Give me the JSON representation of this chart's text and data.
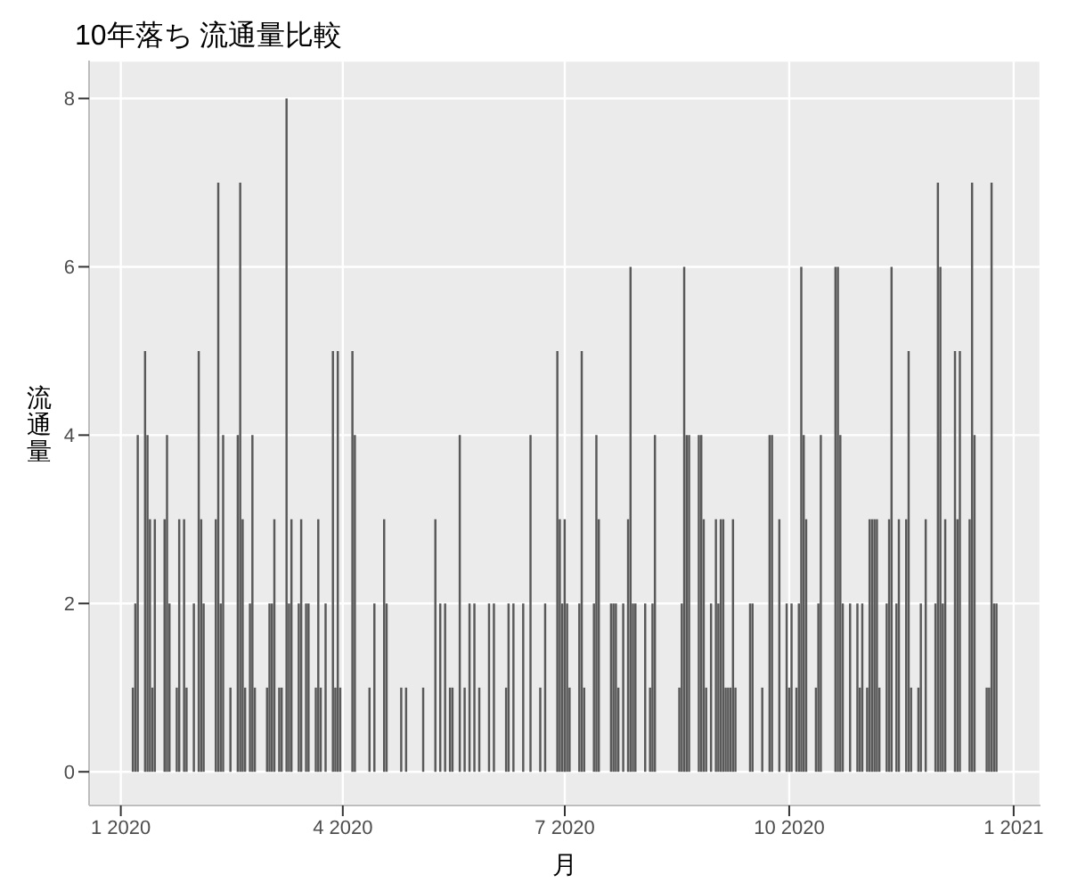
{
  "chart_data": {
    "type": "bar",
    "title": "10年落ち 流通量比較",
    "xlabel": "月",
    "ylabel": "流通量",
    "color": "#595959",
    "grid": true,
    "x": [
      "2020-01-06",
      "2020-01-07",
      "2020-01-08",
      "2020-01-11",
      "2020-01-12",
      "2020-01-13",
      "2020-01-14",
      "2020-01-15",
      "2020-01-19",
      "2020-01-20",
      "2020-01-21",
      "2020-01-24",
      "2020-01-25",
      "2020-01-27",
      "2020-01-28",
      "2020-01-31",
      "2020-02-02",
      "2020-02-03",
      "2020-02-04",
      "2020-02-09",
      "2020-02-10",
      "2020-02-11",
      "2020-02-12",
      "2020-02-15",
      "2020-02-18",
      "2020-02-19",
      "2020-02-20",
      "2020-02-21",
      "2020-02-23",
      "2020-02-24",
      "2020-02-25",
      "2020-03-01",
      "2020-03-02",
      "2020-03-03",
      "2020-03-04",
      "2020-03-06",
      "2020-03-07",
      "2020-03-09",
      "2020-03-10",
      "2020-03-11",
      "2020-03-14",
      "2020-03-15",
      "2020-03-17",
      "2020-03-18",
      "2020-03-21",
      "2020-03-22",
      "2020-03-23",
      "2020-03-25",
      "2020-03-28",
      "2020-03-29",
      "2020-03-30",
      "2020-03-31",
      "2020-04-05",
      "2020-04-06",
      "2020-04-12",
      "2020-04-14",
      "2020-04-18",
      "2020-04-19",
      "2020-04-25",
      "2020-04-27",
      "2020-05-04",
      "2020-05-09",
      "2020-05-11",
      "2020-05-13",
      "2020-05-15",
      "2020-05-16",
      "2020-05-19",
      "2020-05-21",
      "2020-05-23",
      "2020-05-25",
      "2020-05-27",
      "2020-05-31",
      "2020-06-02",
      "2020-06-07",
      "2020-06-08",
      "2020-06-10",
      "2020-06-14",
      "2020-06-17",
      "2020-06-21",
      "2020-06-23",
      "2020-06-28",
      "2020-06-29",
      "2020-06-30",
      "2020-07-01",
      "2020-07-02",
      "2020-07-03",
      "2020-07-07",
      "2020-07-08",
      "2020-07-09",
      "2020-07-13",
      "2020-07-14",
      "2020-07-15",
      "2020-07-20",
      "2020-07-21",
      "2020-07-22",
      "2020-07-23",
      "2020-07-25",
      "2020-07-27",
      "2020-07-28",
      "2020-07-29",
      "2020-07-30",
      "2020-08-03",
      "2020-08-05",
      "2020-08-06",
      "2020-08-07",
      "2020-08-17",
      "2020-08-18",
      "2020-08-19",
      "2020-08-20",
      "2020-08-21",
      "2020-08-25",
      "2020-08-26",
      "2020-08-27",
      "2020-08-28",
      "2020-08-30",
      "2020-09-01",
      "2020-09-02",
      "2020-09-03",
      "2020-09-04",
      "2020-09-05",
      "2020-09-06",
      "2020-09-07",
      "2020-09-08",
      "2020-09-09",
      "2020-09-15",
      "2020-09-16",
      "2020-09-20",
      "2020-09-23",
      "2020-09-24",
      "2020-09-27",
      "2020-09-30",
      "2020-10-01",
      "2020-10-02",
      "2020-10-04",
      "2020-10-05",
      "2020-10-06",
      "2020-10-07",
      "2020-10-08",
      "2020-10-12",
      "2020-10-13",
      "2020-10-14",
      "2020-10-20",
      "2020-10-21",
      "2020-10-22",
      "2020-10-23",
      "2020-10-26",
      "2020-10-29",
      "2020-10-30",
      "2020-10-31",
      "2020-11-02",
      "2020-11-03",
      "2020-11-04",
      "2020-11-05",
      "2020-11-06",
      "2020-11-07",
      "2020-11-10",
      "2020-11-11",
      "2020-11-12",
      "2020-11-14",
      "2020-11-15",
      "2020-11-18",
      "2020-11-19",
      "2020-11-20",
      "2020-11-23",
      "2020-11-24",
      "2020-11-26",
      "2020-11-30",
      "2020-12-01",
      "2020-12-02",
      "2020-12-03",
      "2020-12-04",
      "2020-12-08",
      "2020-12-09",
      "2020-12-10",
      "2020-12-14",
      "2020-12-15",
      "2020-12-16",
      "2020-12-21",
      "2020-12-22",
      "2020-12-23",
      "2020-12-24",
      "2020-12-25"
    ],
    "values": [
      1,
      2,
      4,
      5,
      4,
      3,
      1,
      3,
      3,
      4,
      2,
      1,
      3,
      3,
      1,
      2,
      5,
      3,
      2,
      3,
      7,
      2,
      4,
      1,
      4,
      7,
      3,
      1,
      2,
      4,
      1,
      1,
      2,
      2,
      3,
      1,
      1,
      8,
      2,
      3,
      2,
      3,
      2,
      2,
      1,
      3,
      1,
      2,
      5,
      1,
      5,
      1,
      5,
      4,
      1,
      2,
      3,
      2,
      1,
      1,
      1,
      3,
      2,
      2,
      1,
      1,
      4,
      1,
      2,
      2,
      1,
      2,
      2,
      1,
      2,
      2,
      2,
      4,
      1,
      2,
      5,
      3,
      2,
      3,
      2,
      1,
      2,
      5,
      1,
      2,
      4,
      3,
      2,
      2,
      2,
      1,
      2,
      3,
      6,
      2,
      2,
      2,
      1,
      2,
      4,
      1,
      2,
      6,
      4,
      4,
      4,
      4,
      3,
      1,
      2,
      3,
      2,
      3,
      3,
      1,
      1,
      1,
      3,
      1,
      2,
      2,
      1,
      4,
      4,
      3,
      2,
      1,
      2,
      1,
      2,
      6,
      4,
      3,
      1,
      2,
      4,
      6,
      6,
      4,
      2,
      2,
      2,
      1,
      2,
      1,
      3,
      3,
      3,
      3,
      1,
      2,
      3,
      6,
      2,
      3,
      3,
      5,
      1,
      1,
      2,
      3,
      2,
      7,
      6,
      2,
      3,
      5,
      3,
      5,
      3,
      7,
      4,
      1,
      1,
      7,
      2,
      2
    ],
    "xlim": [
      "2019-12-19",
      "2021-01-12"
    ],
    "xticks": [
      {
        "value": "2020-01-01",
        "label": "1 2020"
      },
      {
        "value": "2020-04-01",
        "label": "4 2020"
      },
      {
        "value": "2020-07-01",
        "label": "7 2020"
      },
      {
        "value": "2020-10-01",
        "label": "10 2020"
      },
      {
        "value": "2021-01-01",
        "label": "1 2021"
      }
    ],
    "ylim": [
      -0.4,
      8.45
    ],
    "yticks": [
      0,
      2,
      4,
      6,
      8
    ]
  }
}
